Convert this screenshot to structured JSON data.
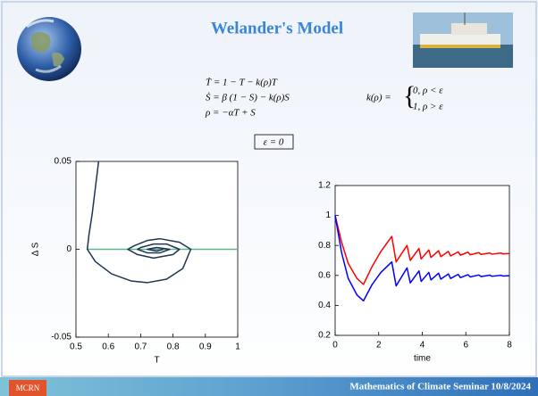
{
  "header": {
    "title": "Welander's Model"
  },
  "equations": {
    "lines": [
      "Ṫ = 1 − T − k(ρ)T",
      "Ṡ = β (1 − S) − k(ρ)S",
      "ρ = −αT + S"
    ],
    "k_def": "k(ρ) =",
    "k_cases": [
      "0,   ρ < ε",
      "1,   ρ > ε"
    ],
    "condition": "ε = 0"
  },
  "chart_data": [
    {
      "type": "line",
      "xlabel": "T",
      "ylabel": "Δ S",
      "xlim": [
        0.5,
        1
      ],
      "ylim": [
        -0.05,
        0.05
      ],
      "xticks": [
        0.5,
        0.6,
        0.7,
        0.8,
        0.9,
        1
      ],
      "yticks": [
        -0.05,
        0,
        0.05
      ],
      "series": [
        {
          "color": "#5cb88a",
          "x": [
            0.535,
            1
          ],
          "values": [
            0,
            0
          ]
        },
        {
          "color": "#1f3550",
          "x": [
            0.57,
            0.56,
            0.55,
            0.54,
            0.535,
            0.56,
            0.61,
            0.67,
            0.72,
            0.78,
            0.83,
            0.855,
            0.82,
            0.76,
            0.72,
            0.68,
            0.66,
            0.69,
            0.74,
            0.8,
            0.82,
            0.78,
            0.74,
            0.7,
            0.69,
            0.72,
            0.76,
            0.79,
            0.75,
            0.72,
            0.75,
            0.77
          ],
          "values": [
            0.05,
            0.035,
            0.02,
            0.008,
            0,
            -0.007,
            -0.014,
            -0.018,
            -0.019,
            -0.017,
            -0.011,
            0,
            0.004,
            0.006,
            0.005,
            0.002,
            0,
            -0.003,
            -0.005,
            -0.003,
            0,
            0.003,
            0.003,
            0.001,
            0,
            -0.002,
            -0.002,
            0,
            0.001,
            0,
            -0.001,
            0
          ]
        }
      ]
    },
    {
      "type": "line",
      "xlabel": "time",
      "xlim": [
        0,
        8
      ],
      "ylim": [
        0.2,
        1.2
      ],
      "xticks": [
        0,
        2,
        4,
        6,
        8
      ],
      "yticks": [
        0.2,
        0.4,
        0.6,
        0.8,
        1,
        1.2
      ],
      "x": [
        0,
        0.3,
        0.6,
        1.0,
        1.3,
        1.7,
        2.1,
        2.6,
        2.8,
        3.3,
        3.45,
        3.85,
        3.95,
        4.3,
        4.4,
        4.75,
        4.85,
        5.2,
        5.3,
        5.65,
        5.75,
        6.1,
        6.2,
        6.6,
        6.7,
        7.1,
        7.2,
        7.6,
        7.7,
        8
      ],
      "series": [
        {
          "color": "#ff0000",
          "values": [
            1,
            0.82,
            0.68,
            0.58,
            0.54,
            0.66,
            0.76,
            0.86,
            0.69,
            0.8,
            0.7,
            0.78,
            0.71,
            0.77,
            0.72,
            0.765,
            0.725,
            0.76,
            0.73,
            0.757,
            0.735,
            0.755,
            0.738,
            0.752,
            0.74,
            0.75,
            0.742,
            0.749,
            0.744,
            0.746
          ]
        },
        {
          "color": "#0000ff",
          "values": [
            1,
            0.75,
            0.58,
            0.47,
            0.43,
            0.54,
            0.62,
            0.69,
            0.53,
            0.65,
            0.55,
            0.63,
            0.56,
            0.62,
            0.57,
            0.615,
            0.575,
            0.61,
            0.58,
            0.607,
            0.585,
            0.605,
            0.59,
            0.603,
            0.592,
            0.602,
            0.594,
            0.601,
            0.596,
            0.598
          ]
        }
      ]
    }
  ],
  "footer": {
    "logo": "MCRN",
    "text": "Mathematics of Climate Seminar  10/8/2024"
  }
}
